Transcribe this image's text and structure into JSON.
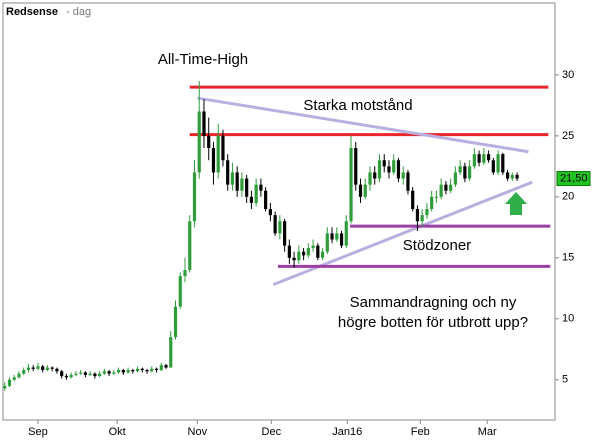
{
  "chart_data": {
    "type": "candlestick",
    "title": "Redsense",
    "subtitle": "- dag",
    "up_color": "#2f9e3a",
    "down_color": "#000000",
    "xlim": [
      -1,
      116
    ],
    "ylim": [
      1.7,
      34.5
    ],
    "yticks": [
      5,
      10,
      15,
      20,
      25,
      30
    ],
    "xticks": [
      {
        "value": 7,
        "label": "Sep"
      },
      {
        "value": 23.7,
        "label": "Okt"
      },
      {
        "value": 40.6,
        "label": "Nov"
      },
      {
        "value": 56.2,
        "label": "Dec"
      },
      {
        "value": 72.2,
        "label": "Jan16"
      },
      {
        "value": 87.6,
        "label": "Feb"
      },
      {
        "value": 101.7,
        "label": "Mar"
      }
    ],
    "last_price": {
      "value": 21.5,
      "label": "21,50",
      "color": "#22c322"
    },
    "ohlc": [
      [
        4.3,
        4.8,
        4.1,
        4.5
      ],
      [
        4.5,
        5.2,
        4.4,
        5.0
      ],
      [
        5.0,
        5.4,
        4.9,
        5.2
      ],
      [
        5.2,
        5.7,
        5.1,
        5.5
      ],
      [
        5.5,
        6.0,
        5.4,
        5.8
      ],
      [
        5.8,
        6.3,
        5.6,
        6.0
      ],
      [
        6.0,
        6.2,
        5.7,
        5.9
      ],
      [
        5.9,
        6.4,
        5.8,
        6.1
      ],
      [
        6.1,
        6.2,
        5.6,
        5.8
      ],
      [
        5.8,
        6.2,
        5.7,
        6.0
      ],
      [
        6.0,
        6.1,
        5.7,
        5.9
      ],
      [
        5.9,
        6.0,
        5.5,
        5.7
      ],
      [
        5.7,
        5.8,
        5.1,
        5.3
      ],
      [
        5.3,
        5.5,
        5.0,
        5.2
      ],
      [
        5.2,
        5.6,
        5.1,
        5.4
      ],
      [
        5.4,
        5.7,
        5.3,
        5.5
      ],
      [
        5.5,
        5.8,
        5.4,
        5.6
      ],
      [
        5.6,
        5.7,
        5.2,
        5.4
      ],
      [
        5.4,
        5.7,
        5.3,
        5.5
      ],
      [
        5.5,
        5.6,
        5.1,
        5.3
      ],
      [
        5.3,
        5.7,
        5.2,
        5.5
      ],
      [
        5.5,
        5.9,
        5.4,
        5.7
      ],
      [
        5.7,
        5.8,
        5.3,
        5.5
      ],
      [
        5.5,
        5.8,
        5.4,
        5.6
      ],
      [
        5.6,
        6.0,
        5.5,
        5.8
      ],
      [
        5.8,
        5.9,
        5.4,
        5.6
      ],
      [
        5.6,
        6.0,
        5.5,
        5.8
      ],
      [
        5.8,
        5.9,
        5.5,
        5.7
      ],
      [
        5.7,
        6.1,
        5.6,
        5.9
      ],
      [
        5.9,
        6.0,
        5.6,
        5.8
      ],
      [
        5.8,
        5.9,
        5.5,
        5.7
      ],
      [
        5.7,
        6.1,
        5.6,
        5.9
      ],
      [
        5.9,
        6.0,
        5.6,
        5.8
      ],
      [
        5.8,
        6.4,
        5.7,
        6.2
      ],
      [
        6.2,
        6.3,
        5.9,
        6.0
      ],
      [
        6.0,
        9.0,
        6.0,
        8.5
      ],
      [
        8.5,
        11.5,
        8.3,
        11.0
      ],
      [
        11.0,
        13.8,
        10.8,
        13.5
      ],
      [
        13.5,
        15.0,
        13.0,
        14.0
      ],
      [
        14.0,
        18.5,
        13.8,
        18.0
      ],
      [
        18.0,
        23.0,
        17.5,
        22.0
      ],
      [
        22.0,
        29.5,
        21.5,
        27.0
      ],
      [
        27.0,
        28.0,
        24.0,
        25.0
      ],
      [
        25.0,
        26.5,
        23.0,
        24.0
      ],
      [
        24.0,
        24.5,
        21.0,
        22.0
      ],
      [
        22.0,
        26.0,
        21.5,
        25.0
      ],
      [
        25.0,
        25.5,
        22.5,
        23.0
      ],
      [
        23.0,
        23.5,
        20.5,
        21.0
      ],
      [
        21.0,
        22.8,
        20.5,
        22.0
      ],
      [
        22.0,
        22.5,
        20.0,
        20.5
      ],
      [
        20.5,
        22.0,
        20.0,
        21.5
      ],
      [
        21.5,
        21.8,
        19.5,
        20.0
      ],
      [
        20.0,
        20.5,
        19.0,
        19.5
      ],
      [
        19.5,
        21.5,
        19.2,
        21.0
      ],
      [
        21.0,
        21.5,
        20.0,
        20.5
      ],
      [
        20.5,
        20.8,
        18.8,
        19.0
      ],
      [
        19.0,
        19.5,
        18.0,
        18.5
      ],
      [
        18.5,
        18.8,
        16.8,
        17.0
      ],
      [
        17.0,
        18.5,
        16.5,
        18.0
      ],
      [
        18.0,
        18.2,
        15.5,
        16.0
      ],
      [
        16.0,
        16.5,
        14.5,
        15.0
      ],
      [
        15.0,
        15.5,
        14.2,
        14.8
      ],
      [
        14.8,
        16.0,
        14.5,
        15.5
      ],
      [
        15.5,
        15.8,
        14.8,
        15.2
      ],
      [
        15.2,
        16.2,
        15.0,
        15.8
      ],
      [
        15.8,
        16.5,
        15.5,
        16.0
      ],
      [
        16.0,
        16.2,
        14.8,
        15.0
      ],
      [
        15.0,
        15.8,
        14.8,
        15.5
      ],
      [
        15.5,
        17.5,
        15.3,
        17.0
      ],
      [
        17.0,
        17.5,
        16.2,
        16.5
      ],
      [
        16.5,
        17.5,
        16.3,
        17.0
      ],
      [
        17.0,
        17.2,
        15.8,
        16.0
      ],
      [
        16.0,
        18.5,
        15.8,
        18.0
      ],
      [
        18.0,
        25.0,
        17.8,
        24.0
      ],
      [
        24.0,
        24.5,
        20.5,
        21.0
      ],
      [
        21.0,
        21.5,
        19.5,
        20.0
      ],
      [
        20.0,
        21.5,
        19.8,
        21.0
      ],
      [
        21.0,
        22.5,
        20.5,
        22.0
      ],
      [
        22.0,
        22.5,
        21.0,
        21.5
      ],
      [
        21.5,
        23.5,
        21.2,
        23.0
      ],
      [
        23.0,
        23.5,
        22.0,
        22.5
      ],
      [
        22.5,
        23.0,
        21.5,
        22.0
      ],
      [
        22.0,
        23.5,
        21.8,
        23.0
      ],
      [
        23.0,
        23.2,
        21.2,
        21.5
      ],
      [
        21.5,
        22.5,
        21.0,
        22.0
      ],
      [
        22.0,
        22.2,
        20.2,
        20.5
      ],
      [
        20.5,
        20.8,
        18.8,
        19.0
      ],
      [
        19.0,
        19.3,
        17.2,
        18.0
      ],
      [
        18.0,
        19.0,
        17.5,
        18.5
      ],
      [
        18.5,
        19.5,
        18.2,
        19.0
      ],
      [
        19.0,
        20.5,
        18.8,
        20.0
      ],
      [
        20.0,
        20.5,
        19.5,
        20.0
      ],
      [
        20.0,
        21.5,
        19.8,
        21.0
      ],
      [
        21.0,
        21.3,
        20.2,
        20.5
      ],
      [
        20.5,
        21.5,
        20.3,
        21.0
      ],
      [
        21.0,
        22.5,
        20.8,
        22.0
      ],
      [
        22.0,
        23.0,
        21.8,
        22.5
      ],
      [
        22.5,
        22.8,
        21.2,
        21.5
      ],
      [
        21.5,
        23.0,
        21.3,
        22.5
      ],
      [
        22.5,
        24.0,
        22.3,
        23.5
      ],
      [
        23.5,
        23.8,
        22.5,
        22.8
      ],
      [
        22.8,
        24.0,
        22.6,
        23.5
      ],
      [
        23.5,
        23.8,
        22.8,
        23.0
      ],
      [
        23.0,
        23.2,
        21.8,
        22.0
      ],
      [
        22.0,
        23.8,
        21.8,
        23.5
      ],
      [
        23.5,
        23.6,
        21.8,
        22.0
      ],
      [
        22.0,
        22.2,
        21.3,
        21.5
      ],
      [
        21.5,
        22.0,
        21.3,
        21.8
      ],
      [
        21.8,
        22.0,
        21.3,
        21.5
      ]
    ],
    "lines": [
      {
        "color": "#e8262b",
        "x": [
          39,
          114.6
        ],
        "y": [
          29,
          29
        ]
      },
      {
        "color": "#e8262b",
        "x": [
          39,
          114.6
        ],
        "y": [
          25.1,
          25.1
        ]
      },
      {
        "color": "#b8b0e0",
        "x": [
          40.6,
          110.4
        ],
        "y": [
          28.1,
          23.7
        ]
      },
      {
        "color": "#b8b0e0",
        "x": [
          56.6,
          111.2
        ],
        "y": [
          12.8,
          21.2
        ]
      },
      {
        "color": "#9a3fa5",
        "x": [
          72.8,
          115
        ],
        "y": [
          17.6,
          17.6
        ]
      },
      {
        "color": "#9a3fa5",
        "x": [
          57.6,
          115
        ],
        "y": [
          14.3,
          14.3
        ]
      }
    ],
    "annotations": [
      "All-Time-High",
      "Starka motstånd",
      "Stödzoner",
      "Sammandragning och ny",
      "högre botten för utbrott upp?"
    ]
  }
}
